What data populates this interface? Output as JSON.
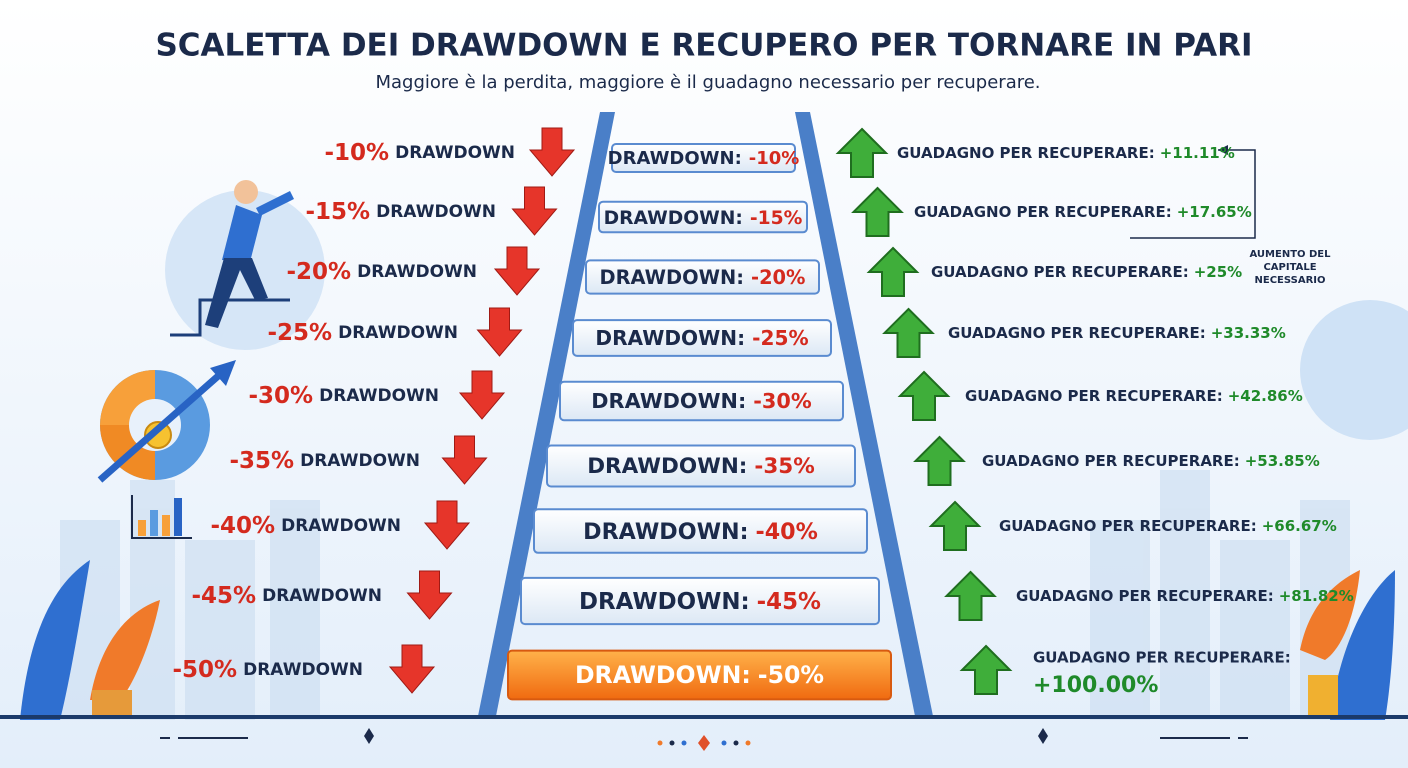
{
  "header": {
    "title": "SCALETTA DEI DRAWDOWN E RECUPERO PER TORNARE IN PARI",
    "subtitle": "Maggiore è la perdita, maggiore è il guadagno necessario per recuperare."
  },
  "labels": {
    "left_suffix": "DRAWDOWN",
    "step_prefix": "DRAWDOWN:",
    "gain_prefix": "GUADAGNO PER RECUPERARE:"
  },
  "annotation": [
    "AUMENTO DEL",
    "CAPITALE",
    "NECESSARIO"
  ],
  "rows": [
    {
      "drawdown": "-10%",
      "gain": "+11.11%"
    },
    {
      "drawdown": "-15%",
      "gain": "+17.65%"
    },
    {
      "drawdown": "-20%",
      "gain": "+25%"
    },
    {
      "drawdown": "-25%",
      "gain": "+33.33%"
    },
    {
      "drawdown": "-30%",
      "gain": "+42.86%"
    },
    {
      "drawdown": "-35%",
      "gain": "+53.85%"
    },
    {
      "drawdown": "-40%",
      "gain": "+66.67%"
    },
    {
      "drawdown": "-45%",
      "gain": "+81.82%"
    },
    {
      "drawdown": "-50%",
      "gain": "+100.00%"
    }
  ]
}
